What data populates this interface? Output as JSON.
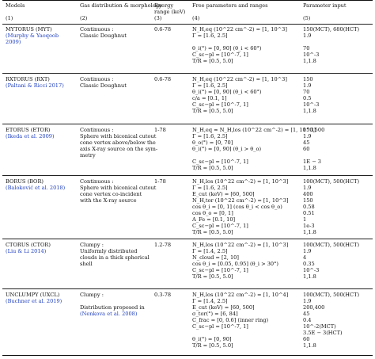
{
  "header": {
    "col_models": "Models",
    "col_gas_line1": "Gas distribution & morphology",
    "col_energy_line1": "Energy",
    "col_energy_line2": "range (keV)",
    "col_params": "Free parameters and ranges",
    "col_input": "Parameter input",
    "num_1": "(1)",
    "num_2": "(2)",
    "num_3": "(3)",
    "num_4": "(4)",
    "num_5": "(5)"
  },
  "rows": [
    {
      "model": "MYTORUS (MYT)",
      "ref": [
        "(Murphy & Yaoqoob",
        "2009)"
      ],
      "gas": [
        "Continuous :",
        "Classic Doughnut"
      ],
      "energy": "0.6-78",
      "params": [
        "N_H,eq (10^22 cm^-2) = [1, 10^3]",
        "Γ = [1.6, 2.5]",
        "",
        "θ_i(°) = [0, 90] (θ_i < 60°)",
        "C_sc−pl = [10^-7, 1]",
        "T/R = [0.5, 5.0]"
      ],
      "inputs": [
        "150(MCT), 680(HCT)",
        "1.9",
        "",
        "70",
        "10^-3",
        "1,1.8"
      ]
    },
    {
      "model": "RXTORUS (RXT)",
      "ref": [
        "(Paltani & Ricci 2017)"
      ],
      "gas": [
        "Continuous :",
        "Classic Doughnut"
      ],
      "energy": "0.6-78",
      "params": [
        "N_H,eq (10^22 cm^-2) = [1, 10^3]",
        "Γ = [1.6, 2.5]",
        "θ_i(°) = [0, 90] (θ_i < 60°)",
        "c/a = [0.1, 1]",
        "C_sc−pl = [10^-7, 1]",
        "T/R = [0.5, 5.0]"
      ],
      "inputs": [
        "150",
        "1.9",
        "70",
        "0.5",
        "10^-3",
        "1,1.8"
      ]
    },
    {
      "model": "ETORUS (ETOR)",
      "ref": [
        "(Ikeda et al. 2009)"
      ],
      "gas": [
        "Continuous :",
        "Sphere with biconical cutout",
        "cone vertex above/below the",
        "axis X-ray source on the sym-",
        "metry"
      ],
      "energy": "1-78",
      "params": [
        "N_H,eq ≈ N_H,los (10^22 cm^-2) = [1, 10^3]",
        "Γ = [1.6, 2.5]",
        "θ_o(°) = [0, 70]",
        "θ_i(°) = [0, 90] (θ_i > θ_o)",
        "",
        "C_sc−pl = [10^-7, 1]",
        "T/R = [0.5, 5.0]"
      ],
      "inputs": [
        "150,500",
        "1.9",
        "45",
        "60",
        "",
        "1E − 3",
        "1,1.8"
      ]
    },
    {
      "model": "BORUS (BOR)",
      "ref": [
        "(Baloković et al. 2018)"
      ],
      "gas": [
        "Continuous :",
        "Sphere with biconical cutout",
        "cone vertex co-incident",
        "with the X-ray source"
      ],
      "energy": "1-78",
      "params": [
        "N_H,los (10^22 cm^-2) = [1, 10^3]",
        "Γ = [1.6, 2.5]",
        "E_cut (keV) = [60, 500]",
        "N_H,tor (10^22 cm^-2) = [1, 10^3]",
        "cos θ_i = [0, 1] (cos θ_i < cos θ_o)",
        "cos θ_o = [0, 1]",
        "A_Fe = [0.1, 10]",
        "C_sc−pl = [10^-7, 1]",
        "T/R = [0.5, 5.0]"
      ],
      "inputs": [
        "100(MCT), 500(HCT)",
        "1.9",
        "400",
        "150",
        "0.58",
        "0.51",
        "1",
        "1e-3",
        "1,1.8"
      ]
    },
    {
      "model": "CTORUS (CTOR)",
      "ref": [
        "(Liu & Li 2014)"
      ],
      "gas": [
        "Clumpy :",
        "Uniformly distributed",
        "clouds in a thick spherical",
        "shell"
      ],
      "energy": "1.2-78",
      "params": [
        "N_H,los (10^22 cm^-2) = [1, 10^3]",
        "Γ = [1.4, 2.5]",
        "N_cloud = [2, 10]",
        "cos θ_i = [0.05, 0.95] (θ_i > 30°)",
        "C_sc−pl = [10^-7, 1]",
        "T/R = [0.5, 5.0]"
      ],
      "inputs": [
        "100(MCT), 500(HCT)",
        "1.9",
        "4",
        "0.35",
        "10^-3",
        "1,1.8"
      ]
    },
    {
      "model": "UNCLUMPY (UXCL)",
      "ref": [
        "(Buchner et al. 2019)"
      ],
      "gas": [
        "Clumpy :",
        "",
        "Distribution proposed in",
        "(Nenkova et al. 2008)"
      ],
      "energy": "0.3-78",
      "params": [
        "N_H,los (10^22 cm^-2) = [1, 10^4]",
        "Γ = [1.4, 2.5]",
        "E_cut (keV) = [60, 500]",
        "σ_tor(°) = [6, 84]",
        "C_frac = [0, 0.6] (inner ring)",
        "C_sc−pl = [10^-7, 1]",
        "",
        "θ_i(°) = [0, 90]",
        "T/R = [0.5, 5.0]"
      ],
      "inputs": [
        "100(MCT), 500(HCT)",
        "1.9",
        "200,400",
        "45",
        "0.4",
        "10^-2(MCT)",
        "3.5E − 3(HCT)",
        "60",
        "1,1.8"
      ]
    }
  ]
}
